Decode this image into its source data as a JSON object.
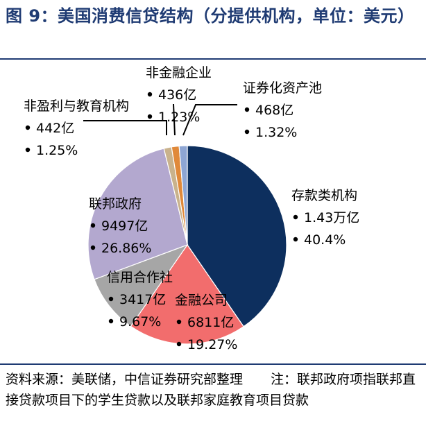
{
  "title": "图 9：美国消费信贷结构（分提供机构，单位：美元）",
  "footnote": {
    "source": "资料来源：美联储，中信证券研究部整理",
    "note": "注：联邦政府项指联邦直接贷款项目下的学生贷款以及联邦家庭教育项目贷款"
  },
  "chart_data": {
    "type": "pie",
    "title": "美国消费信贷结构（分提供机构，单位：美元）",
    "slices": [
      {
        "name": "存款类机构",
        "amount_label": "1.43万亿",
        "value": 40.4,
        "percent_label": "40.4%",
        "color": "#0d2f5e"
      },
      {
        "name": "金融公司",
        "amount_label": "6811亿",
        "value": 19.27,
        "percent_label": "19.27%",
        "color": "#f26d6d"
      },
      {
        "name": "信用合作社",
        "amount_label": "3417亿",
        "value": 9.67,
        "percent_label": "9.67%",
        "color": "#a6a6a6"
      },
      {
        "name": "联邦政府",
        "amount_label": "9497亿",
        "value": 26.86,
        "percent_label": "26.86%",
        "color": "#b3a8cf"
      },
      {
        "name": "非盈利与教育机构",
        "amount_label": "442亿",
        "value": 1.25,
        "percent_label": "1.25%",
        "color": "#c9b28c"
      },
      {
        "name": "非金融企业",
        "amount_label": "436亿",
        "value": 1.23,
        "percent_label": "1.23%",
        "color": "#e0893a"
      },
      {
        "name": "证券化资产池",
        "amount_label": "468亿",
        "value": 1.32,
        "percent_label": "1.32%",
        "color": "#8ea6d4"
      }
    ],
    "colors": {
      "title": "#1f3b73",
      "rule": "#1f3b73",
      "edge": "#ffffff",
      "leader": "#000000"
    }
  }
}
